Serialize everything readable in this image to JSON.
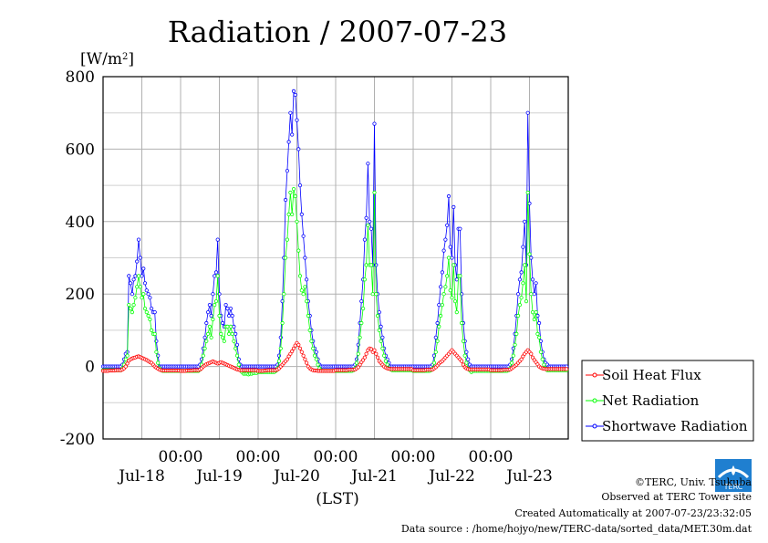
{
  "chart_data": {
    "type": "line",
    "title": "Radiation / 2007-07-23",
    "ylabel": "[W/m2]",
    "ylabel_base": "[W/m",
    "ylabel_sup": "2",
    "ylabel_close": "]",
    "xlabel": "(LST)",
    "ylim": [
      -200,
      800
    ],
    "yticks": [
      -200,
      0,
      200,
      400,
      600,
      800
    ],
    "ytick_labels": [
      "-200",
      "0",
      "200",
      "400",
      "600",
      "800"
    ],
    "xlim": [
      0,
      144
    ],
    "xgrid_hours": [
      12,
      24,
      36,
      48,
      60,
      72,
      84,
      96,
      108,
      120,
      132
    ],
    "time_labels": [
      {
        "hour": 24,
        "label": "00:00"
      },
      {
        "hour": 48,
        "label": "00:00"
      },
      {
        "hour": 72,
        "label": "00:00"
      },
      {
        "hour": 96,
        "label": "00:00"
      },
      {
        "hour": 120,
        "label": "00:00"
      }
    ],
    "day_labels": [
      {
        "hour": 12,
        "label": "Jul-18"
      },
      {
        "hour": 36,
        "label": "Jul-19"
      },
      {
        "hour": 60,
        "label": "Jul-20"
      },
      {
        "hour": 84,
        "label": "Jul-21"
      },
      {
        "hour": 108,
        "label": "Jul-22"
      },
      {
        "hour": 132,
        "label": "Jul-23"
      }
    ],
    "grid": true,
    "legend_position": "right",
    "series": [
      {
        "name": "Soil Heat Flux",
        "color": "#ff0000"
      },
      {
        "name": "Net Radiation",
        "color": "#00ff00"
      },
      {
        "name": "Shortwave Radiation",
        "color": "#0000ff"
      }
    ],
    "days": [
      {
        "sw": [
          0,
          0,
          0,
          0,
          0,
          0,
          0,
          0,
          0,
          0,
          0,
          0,
          5,
          20,
          35,
          40,
          250,
          230,
          200,
          240,
          250,
          290,
          350,
          300,
          250,
          270,
          230,
          210,
          200,
          190,
          160,
          150,
          150,
          70,
          30,
          0,
          0,
          0,
          0,
          0,
          0,
          0,
          0,
          0,
          0,
          0,
          0,
          0
        ],
        "net": [
          -10,
          -10,
          -10,
          -10,
          -10,
          -10,
          -10,
          -10,
          -10,
          -10,
          -10,
          -10,
          -5,
          5,
          20,
          30,
          170,
          160,
          150,
          170,
          190,
          220,
          250,
          220,
          190,
          200,
          160,
          150,
          140,
          130,
          100,
          90,
          90,
          40,
          10,
          -5,
          -10,
          -12,
          -12,
          -12,
          -12,
          -12,
          -12,
          -12,
          -12,
          -12,
          -12,
          -12
        ],
        "soil": [
          -12,
          -12,
          -12,
          -12,
          -11,
          -11,
          -11,
          -11,
          -10,
          -10,
          -10,
          -10,
          -8,
          -5,
          0,
          8,
          16,
          20,
          22,
          24,
          25,
          27,
          28,
          26,
          24,
          22,
          20,
          18,
          15,
          12,
          10,
          5,
          0,
          -3,
          -6,
          -9,
          -10,
          -11,
          -11,
          -11,
          -11,
          -11,
          -11,
          -11,
          -11,
          -11,
          -11,
          -11
        ]
      },
      {
        "sw": [
          0,
          0,
          0,
          0,
          0,
          0,
          0,
          0,
          0,
          0,
          0,
          0,
          5,
          20,
          50,
          80,
          120,
          150,
          170,
          140,
          200,
          250,
          260,
          350,
          200,
          140,
          120,
          110,
          170,
          160,
          140,
          160,
          140,
          110,
          90,
          60,
          20,
          5,
          0,
          0,
          0,
          0,
          0,
          0,
          0,
          0,
          0,
          0
        ],
        "net": [
          -12,
          -12,
          -12,
          -12,
          -12,
          -12,
          -12,
          -12,
          -12,
          -12,
          -12,
          -12,
          -8,
          5,
          30,
          50,
          70,
          90,
          110,
          80,
          130,
          170,
          180,
          250,
          140,
          90,
          80,
          70,
          110,
          110,
          90,
          110,
          90,
          70,
          50,
          30,
          5,
          -10,
          -15,
          -20,
          -20,
          -20,
          -22,
          -20,
          -20,
          -18,
          -18,
          -18
        ],
        "soil": [
          -12,
          -12,
          -12,
          -12,
          -11,
          -11,
          -11,
          -11,
          -10,
          -10,
          -10,
          -10,
          -8,
          -5,
          0,
          3,
          6,
          8,
          10,
          12,
          14,
          12,
          10,
          8,
          10,
          12,
          10,
          8,
          6,
          4,
          2,
          0,
          -2,
          -4,
          -6,
          -8,
          -9,
          -10,
          -10,
          -10,
          -10,
          -10,
          -10,
          -10,
          -10,
          -10,
          -10,
          -10
        ]
      },
      {
        "sw": [
          0,
          0,
          0,
          0,
          0,
          0,
          0,
          0,
          0,
          0,
          0,
          0,
          5,
          30,
          80,
          180,
          300,
          460,
          540,
          620,
          700,
          640,
          760,
          750,
          680,
          600,
          500,
          420,
          360,
          300,
          240,
          180,
          140,
          100,
          70,
          50,
          40,
          20,
          5,
          0,
          0,
          0,
          0,
          0,
          0,
          0,
          0,
          0
        ],
        "net": [
          -15,
          -15,
          -15,
          -15,
          -15,
          -15,
          -15,
          -15,
          -15,
          -15,
          -15,
          -12,
          -5,
          15,
          50,
          120,
          200,
          300,
          350,
          420,
          480,
          420,
          490,
          470,
          400,
          320,
          250,
          210,
          200,
          220,
          180,
          140,
          100,
          70,
          50,
          30,
          20,
          5,
          -5,
          -10,
          -12,
          -12,
          -12,
          -12,
          -12,
          -12,
          -12,
          -12
        ],
        "soil": [
          -12,
          -12,
          -12,
          -12,
          -11,
          -11,
          -10,
          -10,
          -10,
          -10,
          -10,
          -10,
          -8,
          -5,
          0,
          5,
          10,
          15,
          20,
          28,
          35,
          42,
          50,
          58,
          65,
          60,
          50,
          40,
          30,
          20,
          10,
          0,
          -5,
          -8,
          -10,
          -11,
          -11,
          -12,
          -12,
          -12,
          -12,
          -12,
          -12,
          -12,
          -12,
          -12,
          -12,
          -12
        ]
      },
      {
        "sw": [
          0,
          0,
          0,
          0,
          0,
          0,
          0,
          0,
          0,
          0,
          0,
          0,
          5,
          20,
          60,
          120,
          180,
          240,
          350,
          410,
          560,
          400,
          380,
          280,
          670,
          280,
          200,
          150,
          110,
          80,
          50,
          30,
          20,
          10,
          0,
          0,
          0,
          0,
          0,
          0,
          0,
          0,
          0,
          0,
          0,
          0,
          0,
          0
        ],
        "net": [
          -12,
          -12,
          -12,
          -12,
          -12,
          -12,
          -12,
          -12,
          -12,
          -12,
          -12,
          -10,
          -5,
          10,
          35,
          80,
          120,
          160,
          240,
          280,
          390,
          280,
          280,
          200,
          480,
          200,
          140,
          100,
          70,
          50,
          30,
          15,
          5,
          -5,
          -8,
          -10,
          -10,
          -10,
          -10,
          -10,
          -10,
          -10,
          -10,
          -10,
          -10,
          -10,
          -10,
          -10
        ],
        "soil": [
          -10,
          -10,
          -10,
          -10,
          -10,
          -10,
          -10,
          -10,
          -9,
          -9,
          -9,
          -9,
          -8,
          -5,
          -2,
          5,
          12,
          18,
          25,
          35,
          45,
          50,
          48,
          40,
          45,
          35,
          25,
          15,
          10,
          5,
          0,
          -3,
          -5,
          -6,
          -7,
          -7,
          -7,
          -7,
          -7,
          -7,
          -7,
          -7,
          -7,
          -7,
          -7,
          -7,
          -7,
          -7
        ]
      },
      {
        "sw": [
          0,
          0,
          0,
          0,
          0,
          0,
          0,
          0,
          0,
          0,
          0,
          0,
          5,
          30,
          80,
          120,
          170,
          220,
          260,
          320,
          350,
          390,
          470,
          330,
          300,
          440,
          280,
          240,
          380,
          380,
          200,
          120,
          70,
          40,
          20,
          5,
          0,
          0,
          0,
          0,
          0,
          0,
          0,
          0,
          0,
          0,
          0,
          0
        ],
        "net": [
          -12,
          -12,
          -12,
          -12,
          -12,
          -12,
          -12,
          -12,
          -12,
          -12,
          -12,
          -10,
          -5,
          10,
          40,
          70,
          110,
          140,
          170,
          200,
          220,
          250,
          300,
          210,
          190,
          280,
          180,
          150,
          250,
          250,
          120,
          70,
          30,
          10,
          -5,
          -10,
          -15,
          -12,
          -12,
          -12,
          -12,
          -12,
          -12,
          -12,
          -12,
          -12,
          -12,
          -12
        ],
        "soil": [
          -10,
          -10,
          -10,
          -10,
          -10,
          -10,
          -10,
          -10,
          -9,
          -9,
          -9,
          -9,
          -8,
          -5,
          -2,
          3,
          8,
          12,
          15,
          20,
          25,
          30,
          35,
          40,
          45,
          40,
          35,
          30,
          25,
          20,
          15,
          5,
          -2,
          -5,
          -7,
          -8,
          -8,
          -8,
          -8,
          -8,
          -8,
          -8,
          -8,
          -8,
          -8,
          -8,
          -8,
          -8
        ]
      },
      {
        "sw": [
          0,
          0,
          0,
          0,
          0,
          0,
          0,
          0,
          0,
          0,
          0,
          0,
          5,
          20,
          50,
          90,
          140,
          200,
          240,
          260,
          330,
          400,
          280,
          700,
          450,
          300,
          240,
          200,
          230,
          140,
          120,
          70,
          40,
          20,
          10,
          5,
          0,
          0,
          0,
          0,
          0,
          0,
          0,
          0,
          0,
          0,
          0,
          0
        ],
        "net": [
          -12,
          -12,
          -12,
          -12,
          -12,
          -12,
          -12,
          -12,
          -12,
          -12,
          -12,
          -10,
          -5,
          10,
          30,
          60,
          90,
          140,
          170,
          190,
          230,
          280,
          180,
          480,
          310,
          200,
          150,
          130,
          150,
          90,
          80,
          40,
          20,
          5,
          -5,
          -10,
          -10,
          -10,
          -10,
          -10,
          -10,
          -10,
          -10,
          -10,
          -10,
          -10,
          -10,
          -10
        ],
        "soil": [
          -10,
          -10,
          -10,
          -10,
          -10,
          -10,
          -10,
          -10,
          -9,
          -9,
          -9,
          -9,
          -8,
          -5,
          -2,
          2,
          5,
          10,
          15,
          20,
          28,
          35,
          40,
          45,
          40,
          35,
          25,
          18,
          12,
          6,
          0,
          -3,
          -5,
          -6,
          -7,
          -7,
          -7,
          -7,
          -7,
          -7,
          -7,
          -7,
          -7,
          -7,
          -7,
          -7,
          -7,
          -7
        ]
      }
    ]
  },
  "credits": {
    "copyright": "©TERC, Univ. Tsukuba",
    "observed": "Observed at TERC Tower site",
    "created": "Created Automatically at 2007-07-23/23:32:05",
    "source": "Data source : /home/hojyo/new/TERC-data/sorted_data/MET.30m.dat",
    "logo_text": "TERC"
  }
}
